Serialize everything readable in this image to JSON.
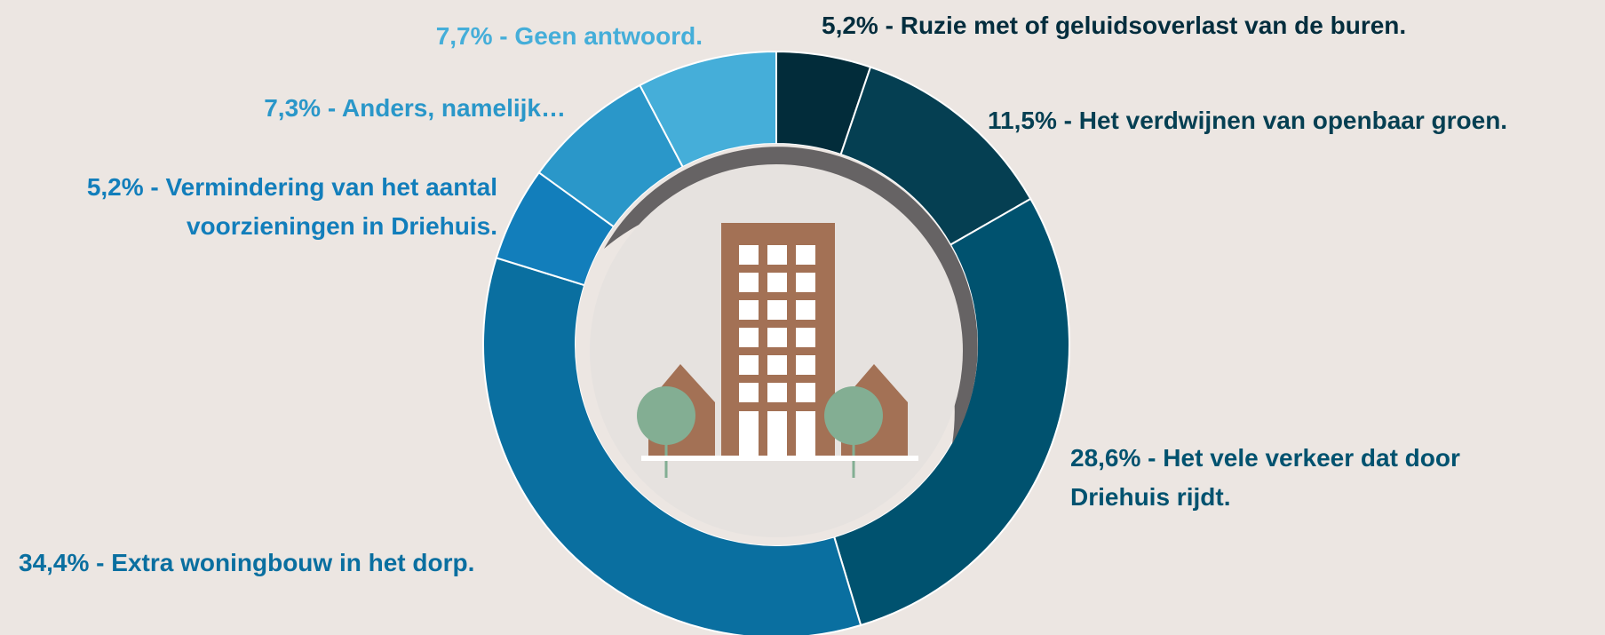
{
  "chart_data": {
    "type": "donut",
    "categories": [
      "Ruzie met of geluidsoverlast van de buren.",
      "Het verdwijnen van openbaar groen.",
      "Het vele verkeer dat door Driehuis rijdt.",
      "Extra woningbouw in het dorp.",
      "Vermindering van het aantal voorzieningen in Driehuis.",
      "Anders, namelijk…",
      "Geen antwoord."
    ],
    "values": [
      5.2,
      11.5,
      28.6,
      34.4,
      5.2,
      7.3,
      7.7
    ],
    "value_labels": [
      "5,2%",
      "11,5%",
      "28,6%",
      "34,4%",
      "5,2%",
      "7,3%",
      "7,7%"
    ],
    "label_separator": " - ",
    "colors": [
      "#022c3a",
      "#053f52",
      "#00526f",
      "#0a6fa0",
      "#127ebb",
      "#2a97c9",
      "#45aed9"
    ]
  }
}
